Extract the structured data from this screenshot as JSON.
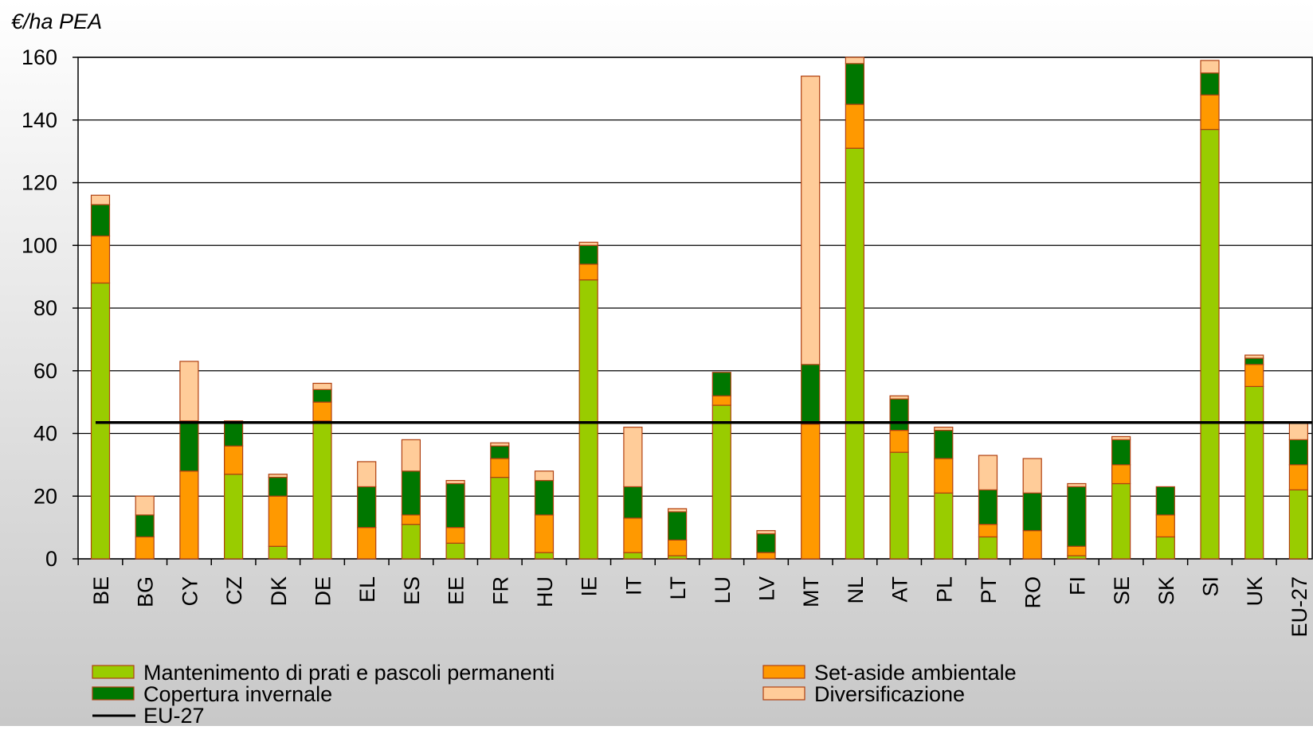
{
  "chart_data": {
    "type": "stacked_bar",
    "y_label": "€/ha PEA",
    "categories": [
      "BE",
      "BG",
      "CY",
      "CZ",
      "DK",
      "DE",
      "EL",
      "ES",
      "EE",
      "FR",
      "HU",
      "IE",
      "IT",
      "LT",
      "LU",
      "LV",
      "MT",
      "NL",
      "AT",
      "PL",
      "PT",
      "RO",
      "FI",
      "SE",
      "SK",
      "SI",
      "UK",
      "EU-27"
    ],
    "series": [
      {
        "name": "Mantenimento di prati e pascoli permanenti",
        "color": "#99cc00",
        "values": [
          88,
          0,
          0,
          27,
          4,
          44,
          0,
          11,
          5,
          26,
          2,
          89,
          2,
          1,
          49,
          0,
          0,
          131,
          34,
          21,
          7,
          0,
          1,
          24,
          7,
          137,
          55,
          22
        ]
      },
      {
        "name": "Set-aside ambientale",
        "color": "#ff9900",
        "values": [
          15,
          7,
          28,
          9,
          16,
          6,
          10,
          3,
          5,
          6,
          12,
          5,
          11,
          5,
          3,
          2,
          43,
          14,
          7,
          11,
          4,
          9,
          3,
          6,
          7,
          11,
          7,
          8
        ]
      },
      {
        "name": "Copertura invernale",
        "color": "#007700",
        "values": [
          10,
          7,
          16,
          8,
          6,
          4,
          13,
          14,
          14,
          4,
          11,
          6,
          10,
          9,
          7.5,
          6,
          19,
          13,
          10,
          9,
          11,
          12,
          19,
          8,
          9,
          7,
          2,
          8
        ]
      },
      {
        "name": "Diversificazione",
        "color": "#ffcc99",
        "values": [
          3,
          6,
          19,
          0,
          1,
          2,
          8,
          10,
          1,
          1,
          3,
          1,
          19,
          1,
          0,
          1,
          92,
          2,
          1,
          1,
          11,
          11,
          1,
          1,
          0,
          4,
          1,
          5.5
        ]
      }
    ],
    "reference_line": {
      "name": "EU-27",
      "value": 43.5,
      "color": "#000000"
    },
    "ylim": [
      0,
      160
    ],
    "yticks": [
      0,
      20,
      40,
      60,
      80,
      100,
      120,
      140,
      160
    ],
    "grid": true
  }
}
